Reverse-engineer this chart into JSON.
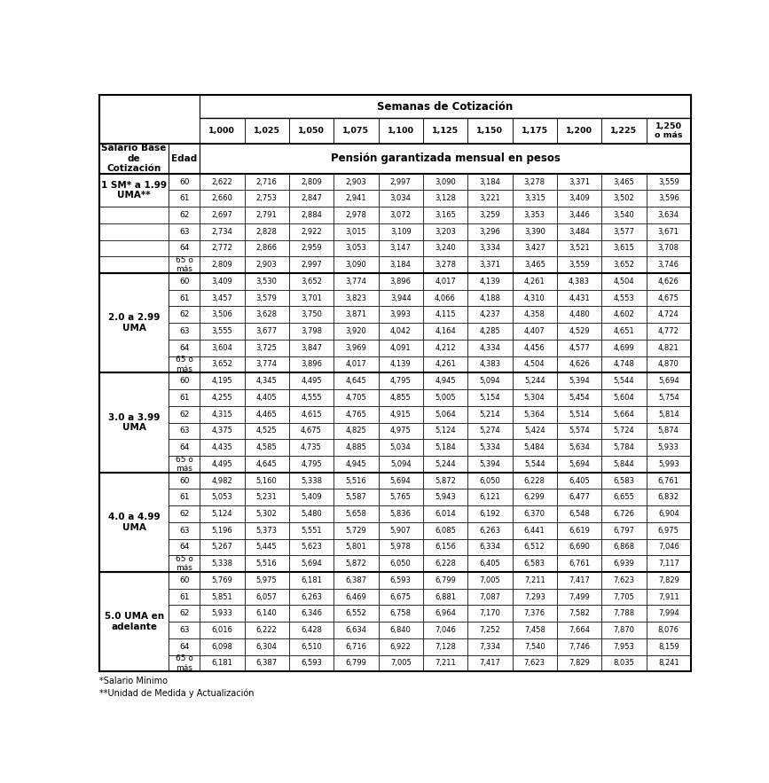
{
  "title_semanas": "Semanas de Cotización",
  "col_headers": [
    "1,000",
    "1,025",
    "1,050",
    "1,075",
    "1,100",
    "1,125",
    "1,150",
    "1,175",
    "1,200",
    "1,225",
    "1,250\no más"
  ],
  "row_header_col1": "Salario Base\nde\nCotización",
  "row_header_col2": "Edad",
  "pension_label": "Pensión garantizada mensual en pesos",
  "salary_groups": [
    {
      "label": "1 SM* a 1.99\nUMA**",
      "label_span": 2,
      "ages": [
        "60",
        "61",
        "62",
        "63",
        "64",
        "65 o\nmás"
      ],
      "values": [
        [
          2622,
          2716,
          2809,
          2903,
          2997,
          3090,
          3184,
          3278,
          3371,
          3465,
          3559
        ],
        [
          2660,
          2753,
          2847,
          2941,
          3034,
          3128,
          3221,
          3315,
          3409,
          3502,
          3596
        ],
        [
          2697,
          2791,
          2884,
          2978,
          3072,
          3165,
          3259,
          3353,
          3446,
          3540,
          3634
        ],
        [
          2734,
          2828,
          2922,
          3015,
          3109,
          3203,
          3296,
          3390,
          3484,
          3577,
          3671
        ],
        [
          2772,
          2866,
          2959,
          3053,
          3147,
          3240,
          3334,
          3427,
          3521,
          3615,
          3708
        ],
        [
          2809,
          2903,
          2997,
          3090,
          3184,
          3278,
          3371,
          3465,
          3559,
          3652,
          3746
        ]
      ]
    },
    {
      "label": "2.0 a 2.99\nUMA",
      "label_span": 6,
      "ages": [
        "60",
        "61",
        "62",
        "63",
        "64",
        "65 o\nmás"
      ],
      "values": [
        [
          3409,
          3530,
          3652,
          3774,
          3896,
          4017,
          4139,
          4261,
          4383,
          4504,
          4626
        ],
        [
          3457,
          3579,
          3701,
          3823,
          3944,
          4066,
          4188,
          4310,
          4431,
          4553,
          4675
        ],
        [
          3506,
          3628,
          3750,
          3871,
          3993,
          4115,
          4237,
          4358,
          4480,
          4602,
          4724
        ],
        [
          3555,
          3677,
          3798,
          3920,
          4042,
          4164,
          4285,
          4407,
          4529,
          4651,
          4772
        ],
        [
          3604,
          3725,
          3847,
          3969,
          4091,
          4212,
          4334,
          4456,
          4577,
          4699,
          4821
        ],
        [
          3652,
          3774,
          3896,
          4017,
          4139,
          4261,
          4383,
          4504,
          4626,
          4748,
          4870
        ]
      ]
    },
    {
      "label": "3.0 a 3.99\nUMA",
      "label_span": 6,
      "ages": [
        "60",
        "61",
        "62",
        "63",
        "64",
        "65 o\nmás"
      ],
      "values": [
        [
          4195,
          4345,
          4495,
          4645,
          4795,
          4945,
          5094,
          5244,
          5394,
          5544,
          5694
        ],
        [
          4255,
          4405,
          4555,
          4705,
          4855,
          5005,
          5154,
          5304,
          5454,
          5604,
          5754
        ],
        [
          4315,
          4465,
          4615,
          4765,
          4915,
          5064,
          5214,
          5364,
          5514,
          5664,
          5814
        ],
        [
          4375,
          4525,
          4675,
          4825,
          4975,
          5124,
          5274,
          5424,
          5574,
          5724,
          5874
        ],
        [
          4435,
          4585,
          4735,
          4885,
          5034,
          5184,
          5334,
          5484,
          5634,
          5784,
          5933
        ],
        [
          4495,
          4645,
          4795,
          4945,
          5094,
          5244,
          5394,
          5544,
          5694,
          5844,
          5993
        ]
      ]
    },
    {
      "label": "4.0 a 4.99\nUMA",
      "label_span": 6,
      "ages": [
        "60",
        "61",
        "62",
        "63",
        "64",
        "65 o\nmás"
      ],
      "values": [
        [
          4982,
          5160,
          5338,
          5516,
          5694,
          5872,
          6050,
          6228,
          6405,
          6583,
          6761
        ],
        [
          5053,
          5231,
          5409,
          5587,
          5765,
          5943,
          6121,
          6299,
          6477,
          6655,
          6832
        ],
        [
          5124,
          5302,
          5480,
          5658,
          5836,
          6014,
          6192,
          6370,
          6548,
          6726,
          6904
        ],
        [
          5196,
          5373,
          5551,
          5729,
          5907,
          6085,
          6263,
          6441,
          6619,
          6797,
          6975
        ],
        [
          5267,
          5445,
          5623,
          5801,
          5978,
          6156,
          6334,
          6512,
          6690,
          6868,
          7046
        ],
        [
          5338,
          5516,
          5694,
          5872,
          6050,
          6228,
          6405,
          6583,
          6761,
          6939,
          7117
        ]
      ]
    },
    {
      "label": "5.0 UMA en\nadelante",
      "label_span": 6,
      "ages": [
        "60",
        "61",
        "62",
        "63",
        "64",
        "65 o\nmás"
      ],
      "values": [
        [
          5769,
          5975,
          6181,
          6387,
          6593,
          6799,
          7005,
          7211,
          7417,
          7623,
          7829
        ],
        [
          5851,
          6057,
          6263,
          6469,
          6675,
          6881,
          7087,
          7293,
          7499,
          7705,
          7911
        ],
        [
          5933,
          6140,
          6346,
          6552,
          6758,
          6964,
          7170,
          7376,
          7582,
          7788,
          7994
        ],
        [
          6016,
          6222,
          6428,
          6634,
          6840,
          7046,
          7252,
          7458,
          7664,
          7870,
          8076
        ],
        [
          6098,
          6304,
          6510,
          6716,
          6922,
          7128,
          7334,
          7540,
          7746,
          7953,
          8159
        ],
        [
          6181,
          6387,
          6593,
          6799,
          7005,
          7211,
          7417,
          7623,
          7829,
          8035,
          8241
        ]
      ]
    }
  ],
  "footnotes": [
    "*Salario Mínimo",
    "**Unidad de Medida y Actualización"
  ]
}
